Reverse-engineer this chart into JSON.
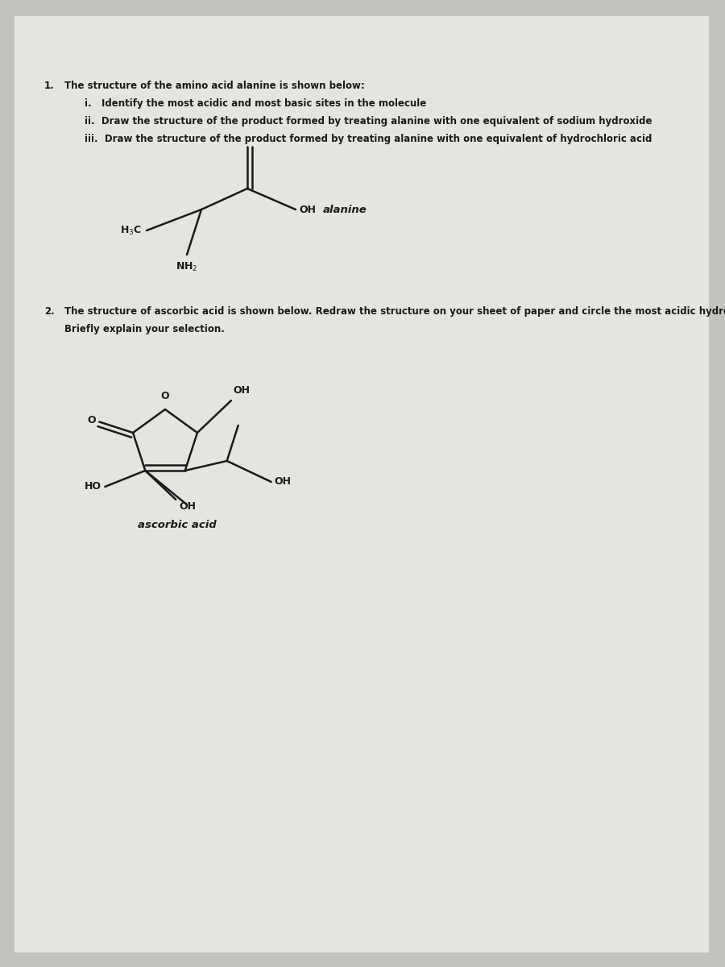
{
  "bg_color": "#c4c2be",
  "paper_color": "#e6e4e0",
  "text_color": "#1a1a1a",
  "fs": 8.5,
  "q1_text": "The structure of the amino acid alanine is shown below:",
  "q1_i": "i.   Identify the most acidic and most basic sites in the molecule",
  "q1_ii": "ii.  Draw the structure of the product formed by treating alanine with one equivalent of sodium hydroxide",
  "q1_iii": "iii.  Draw the structure of the product formed by treating alanine with one equivalent of hydrochloric acid",
  "q2_text": "The structure of ascorbic acid is shown below. Redraw the structure on your sheet of paper and circle the most acidic hydrogen.",
  "q2_text2": "Briefly explain your selection.",
  "alanine_label": "alanine",
  "ascorbic_label": "ascorbic acid"
}
